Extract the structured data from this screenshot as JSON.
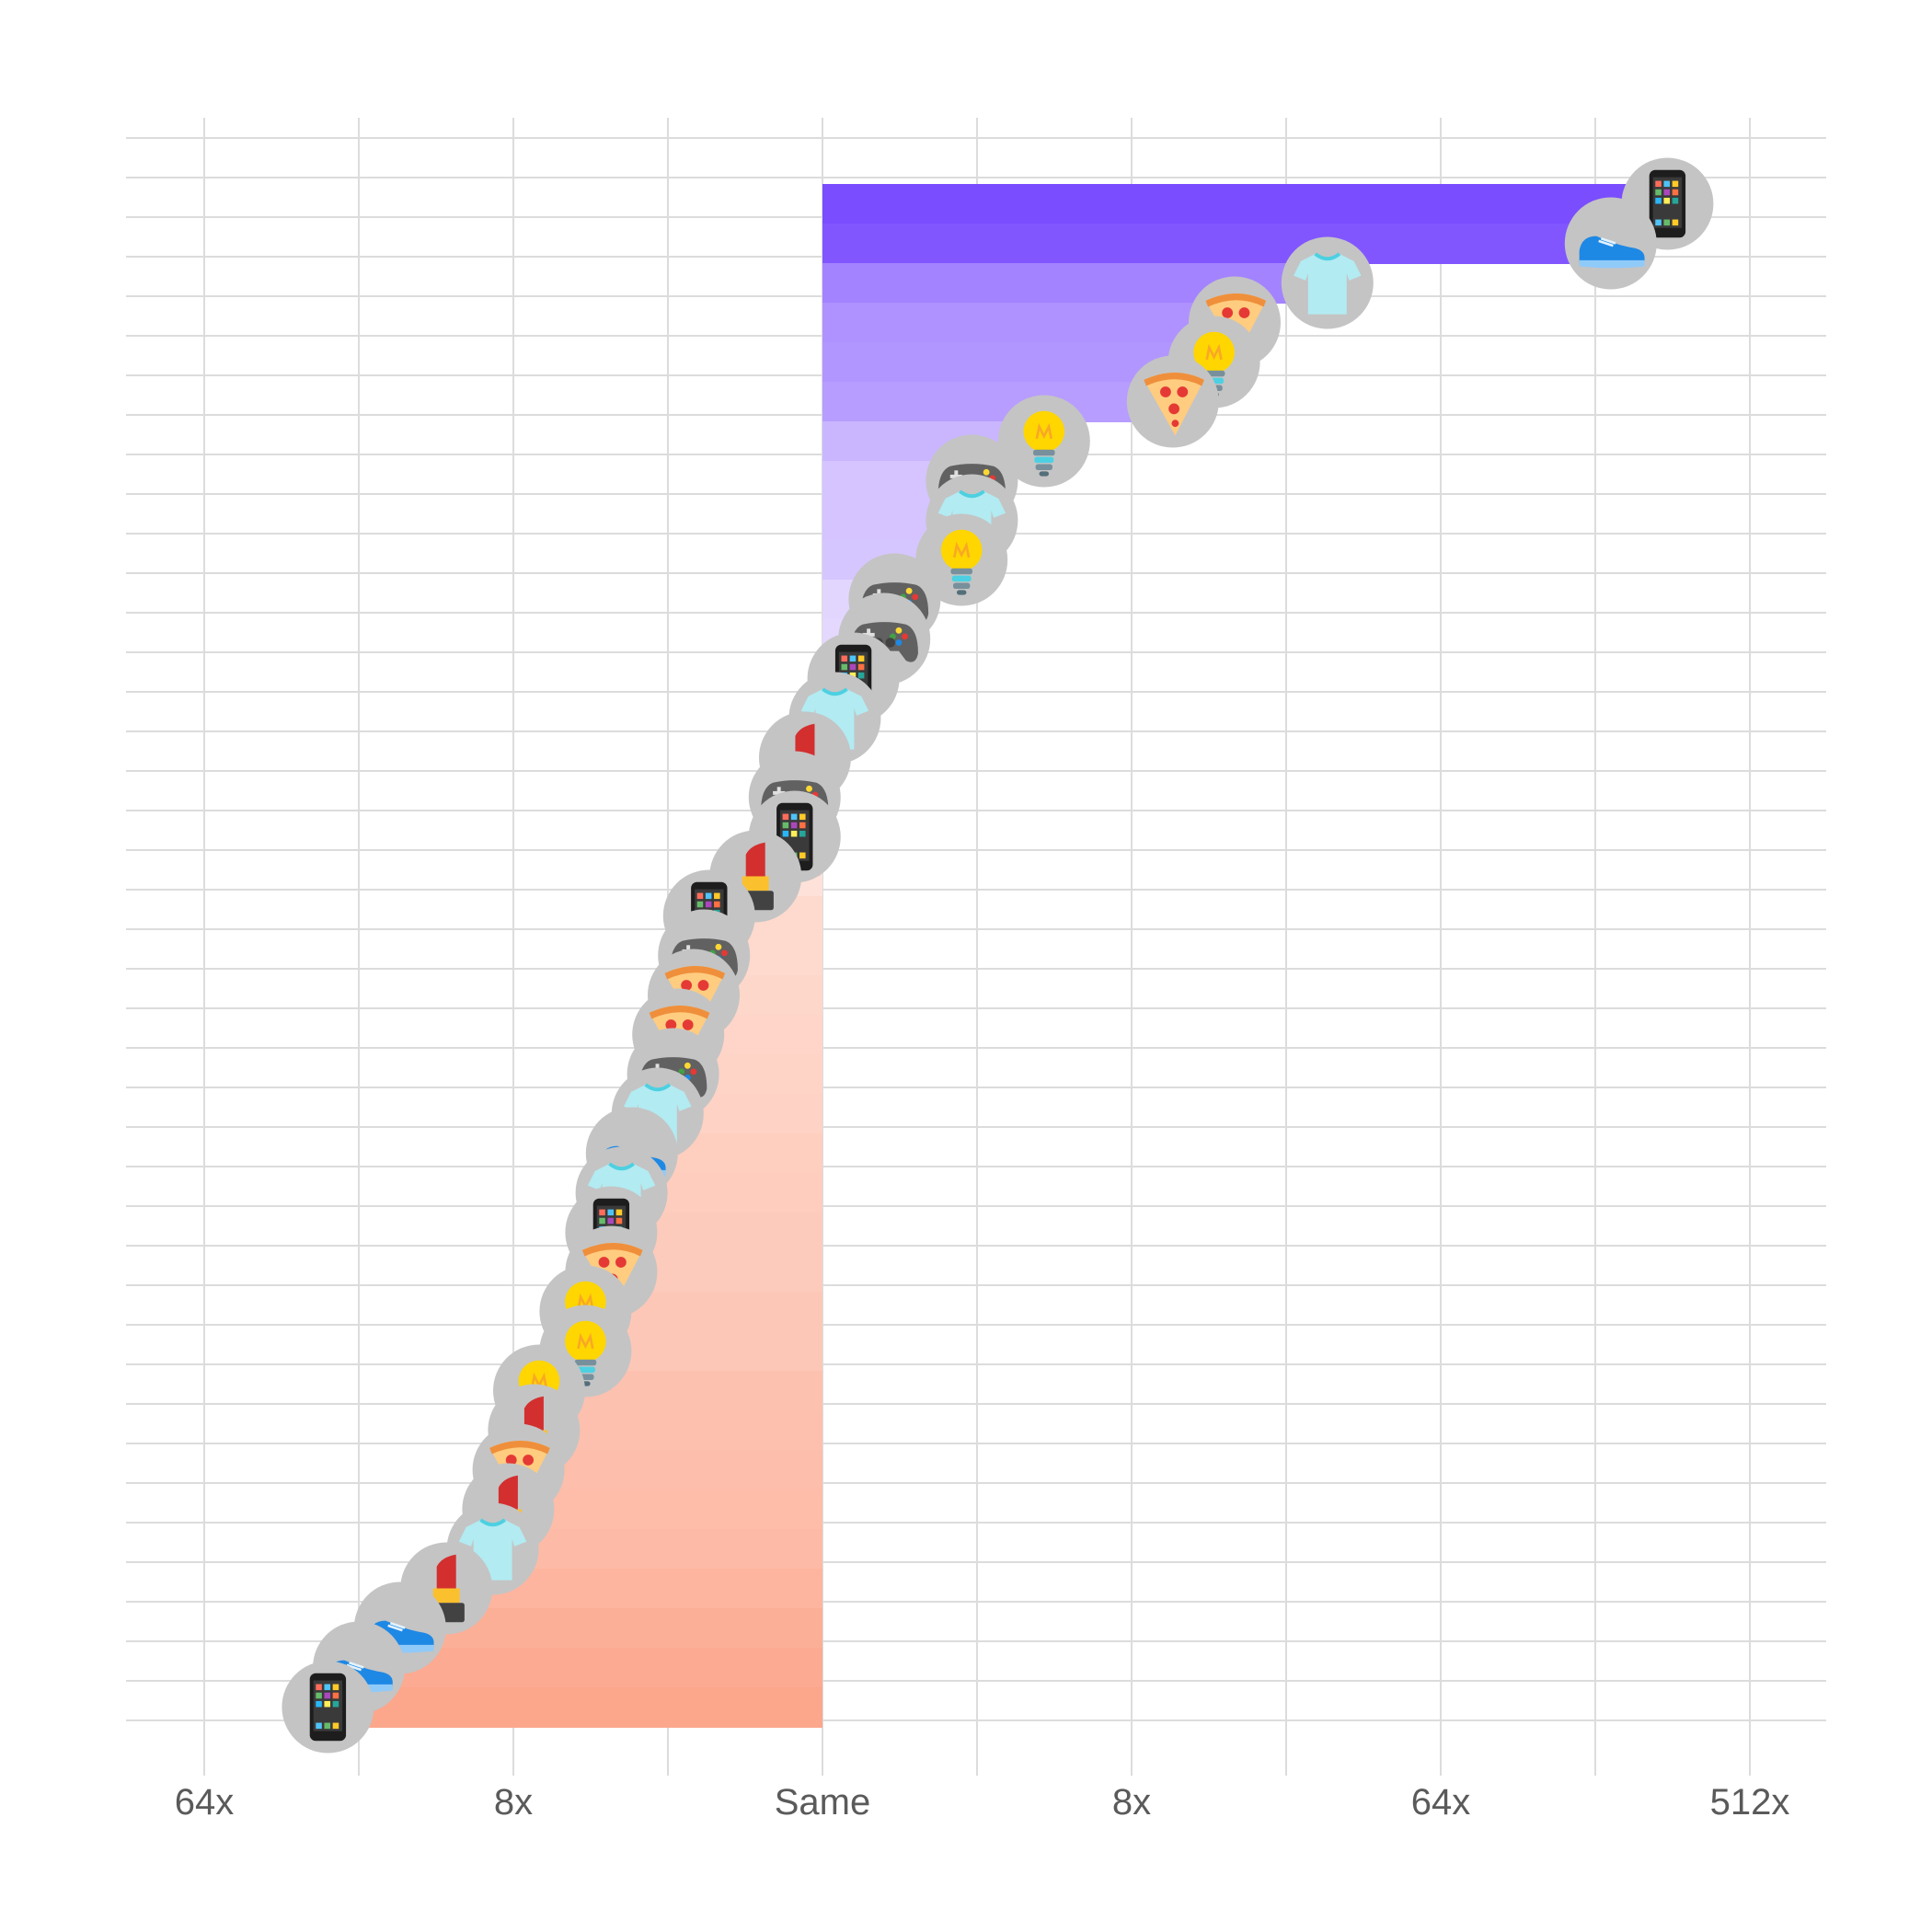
{
  "chart_data": {
    "type": "bar",
    "orientation": "horizontal",
    "x_scale": "log2",
    "x_ticks": [
      {
        "value": -6,
        "label": "64x"
      },
      {
        "value": -3,
        "label": "8x"
      },
      {
        "value": 0,
        "label": "Same"
      },
      {
        "value": 3,
        "label": "8x"
      },
      {
        "value": 6,
        "label": "64x"
      },
      {
        "value": 9,
        "label": "512x"
      }
    ],
    "xlim": [
      -6.75,
      9.75
    ],
    "grid": true,
    "colors": {
      "positive_strong": "#7a4dff",
      "positive_light": "#f3ecff",
      "negative_strong": "#fca68c",
      "negative_light": "#fff1ec",
      "marker_bg": "#c4c4c4"
    },
    "points": [
      {
        "icon": "phone",
        "value": 8.2
      },
      {
        "icon": "shoe",
        "value": 7.65
      },
      {
        "icon": "tshirt",
        "value": 4.9
      },
      {
        "icon": "pizza",
        "value": 4.0
      },
      {
        "icon": "lightbulb",
        "value": 3.8
      },
      {
        "icon": "pizza",
        "value": 3.4
      },
      {
        "icon": "lightbulb",
        "value": 2.15
      },
      {
        "icon": "gamepad",
        "value": 1.45
      },
      {
        "icon": "tshirt",
        "value": 1.45
      },
      {
        "icon": "lightbulb",
        "value": 1.35
      },
      {
        "icon": "gamepad",
        "value": 0.7
      },
      {
        "icon": "gamepad",
        "value": 0.6
      },
      {
        "icon": "phone",
        "value": 0.3
      },
      {
        "icon": "tshirt",
        "value": 0.12
      },
      {
        "icon": "lipstick",
        "value": -0.17
      },
      {
        "icon": "gamepad",
        "value": -0.27
      },
      {
        "icon": "phone",
        "value": -0.27
      },
      {
        "icon": "lipstick",
        "value": -0.65
      },
      {
        "icon": "phone",
        "value": -1.1
      },
      {
        "icon": "gamepad",
        "value": -1.15
      },
      {
        "icon": "pizza",
        "value": -1.25
      },
      {
        "icon": "pizza",
        "value": -1.4
      },
      {
        "icon": "gamepad",
        "value": -1.45
      },
      {
        "icon": "tshirt",
        "value": -1.6
      },
      {
        "icon": "shoe",
        "value": -1.85
      },
      {
        "icon": "tshirt",
        "value": -1.95
      },
      {
        "icon": "phone",
        "value": -2.05
      },
      {
        "icon": "pizza",
        "value": -2.05
      },
      {
        "icon": "lightbulb",
        "value": -2.3
      },
      {
        "icon": "lightbulb",
        "value": -2.3
      },
      {
        "icon": "lightbulb",
        "value": -2.75
      },
      {
        "icon": "lipstick",
        "value": -2.8
      },
      {
        "icon": "pizza",
        "value": -2.95
      },
      {
        "icon": "lipstick",
        "value": -3.05
      },
      {
        "icon": "tshirt",
        "value": -3.2
      },
      {
        "icon": "lipstick",
        "value": -3.65
      },
      {
        "icon": "shoe",
        "value": -4.1
      },
      {
        "icon": "shoe",
        "value": -4.5
      },
      {
        "icon": "phone",
        "value": -4.8
      }
    ]
  }
}
